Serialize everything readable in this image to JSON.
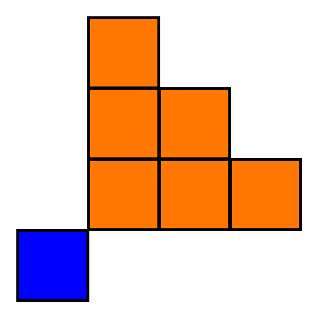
{
  "figure": {
    "type": "grid-block-diagram",
    "grid_columns": 4,
    "grid_rows": 4,
    "colors": {
      "background": "#ffffff",
      "border": "#000000",
      "staircase": "#ff7700",
      "corner": "#0000ff"
    },
    "blocks": [
      {
        "name": "orange-block-r0-c1",
        "row": 0,
        "col": 1,
        "color": "staircase"
      },
      {
        "name": "orange-block-r1-c1",
        "row": 1,
        "col": 1,
        "color": "staircase"
      },
      {
        "name": "orange-block-r1-c2",
        "row": 1,
        "col": 2,
        "color": "staircase"
      },
      {
        "name": "orange-block-r2-c1",
        "row": 2,
        "col": 1,
        "color": "staircase"
      },
      {
        "name": "orange-block-r2-c2",
        "row": 2,
        "col": 2,
        "color": "staircase"
      },
      {
        "name": "orange-block-r2-c3",
        "row": 2,
        "col": 3,
        "color": "staircase"
      },
      {
        "name": "blue-block-r3-c0",
        "row": 3,
        "col": 0,
        "color": "corner"
      }
    ]
  }
}
